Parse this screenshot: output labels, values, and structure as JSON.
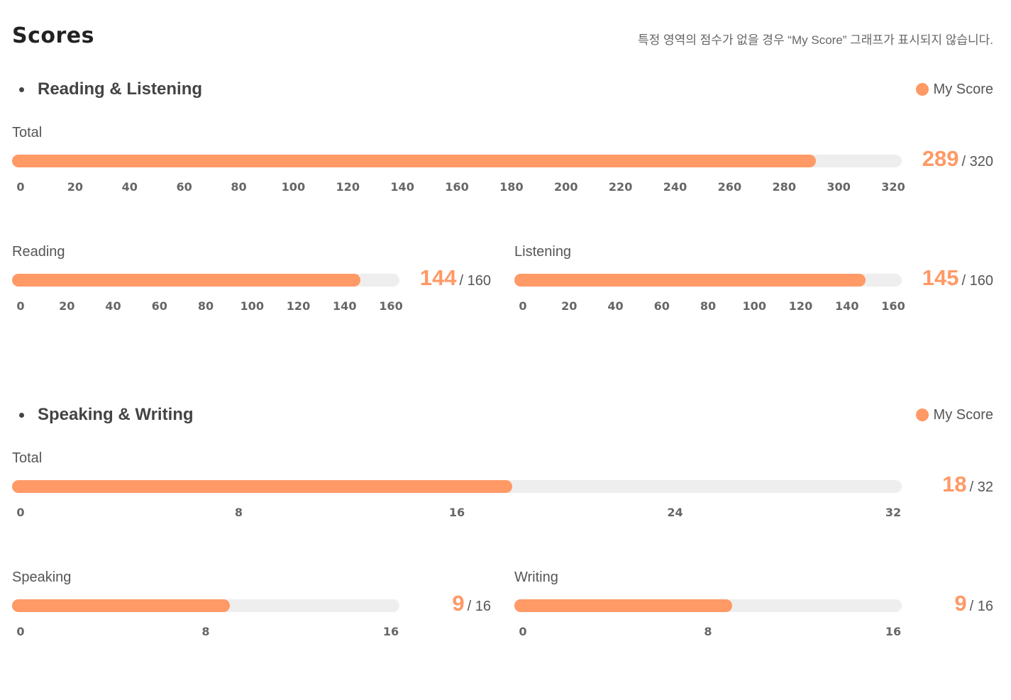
{
  "page": {
    "title": "Scores",
    "notice": "특정 영역의 점수가 없을 경우 “My Score” 그래프가 표시되지 않습니다."
  },
  "colors": {
    "accent": "#FF9966",
    "track": "#EEEEEE",
    "text": "#444444"
  },
  "legend": {
    "label": "My Score",
    "icon": "circle-dot-icon"
  },
  "sections": [
    {
      "title": "Reading & Listening"
    },
    {
      "title": "Speaking & Writing"
    }
  ],
  "chart_data": [
    {
      "type": "bar",
      "section": "Reading & Listening",
      "label": "Total",
      "value": 289,
      "max": 320,
      "value_text": "289",
      "max_text": "/ 320",
      "xlim": [
        0,
        320
      ],
      "ticks": [
        "0",
        "20",
        "40",
        "60",
        "80",
        "100",
        "120",
        "140",
        "160",
        "180",
        "200",
        "220",
        "240",
        "260",
        "280",
        "300",
        "320"
      ],
      "legend": "My Score"
    },
    {
      "type": "bar",
      "section": "Reading & Listening",
      "label": "Reading",
      "value": 144,
      "max": 160,
      "value_text": "144",
      "max_text": "/ 160",
      "xlim": [
        0,
        160
      ],
      "ticks": [
        "0",
        "20",
        "40",
        "60",
        "80",
        "100",
        "120",
        "140",
        "160"
      ],
      "legend": "My Score"
    },
    {
      "type": "bar",
      "section": "Reading & Listening",
      "label": "Listening",
      "value": 145,
      "max": 160,
      "value_text": "145",
      "max_text": "/ 160",
      "xlim": [
        0,
        160
      ],
      "ticks": [
        "0",
        "20",
        "40",
        "60",
        "80",
        "100",
        "120",
        "140",
        "160"
      ],
      "legend": "My Score"
    },
    {
      "type": "bar",
      "section": "Speaking & Writing",
      "label": "Total",
      "value": 18,
      "max": 32,
      "value_text": "18",
      "max_text": "/ 32",
      "xlim": [
        0,
        32
      ],
      "ticks": [
        "0",
        "8",
        "16",
        "24",
        "32"
      ],
      "legend": "My Score"
    },
    {
      "type": "bar",
      "section": "Speaking & Writing",
      "label": "Speaking",
      "value": 9,
      "max": 16,
      "value_text": "9",
      "max_text": "/ 16",
      "xlim": [
        0,
        16
      ],
      "ticks": [
        "0",
        "8",
        "16"
      ],
      "legend": "My Score"
    },
    {
      "type": "bar",
      "section": "Speaking & Writing",
      "label": "Writing",
      "value": 9,
      "max": 16,
      "value_text": "9",
      "max_text": "/ 16",
      "xlim": [
        0,
        16
      ],
      "ticks": [
        "0",
        "8",
        "16"
      ],
      "legend": "My Score"
    }
  ]
}
